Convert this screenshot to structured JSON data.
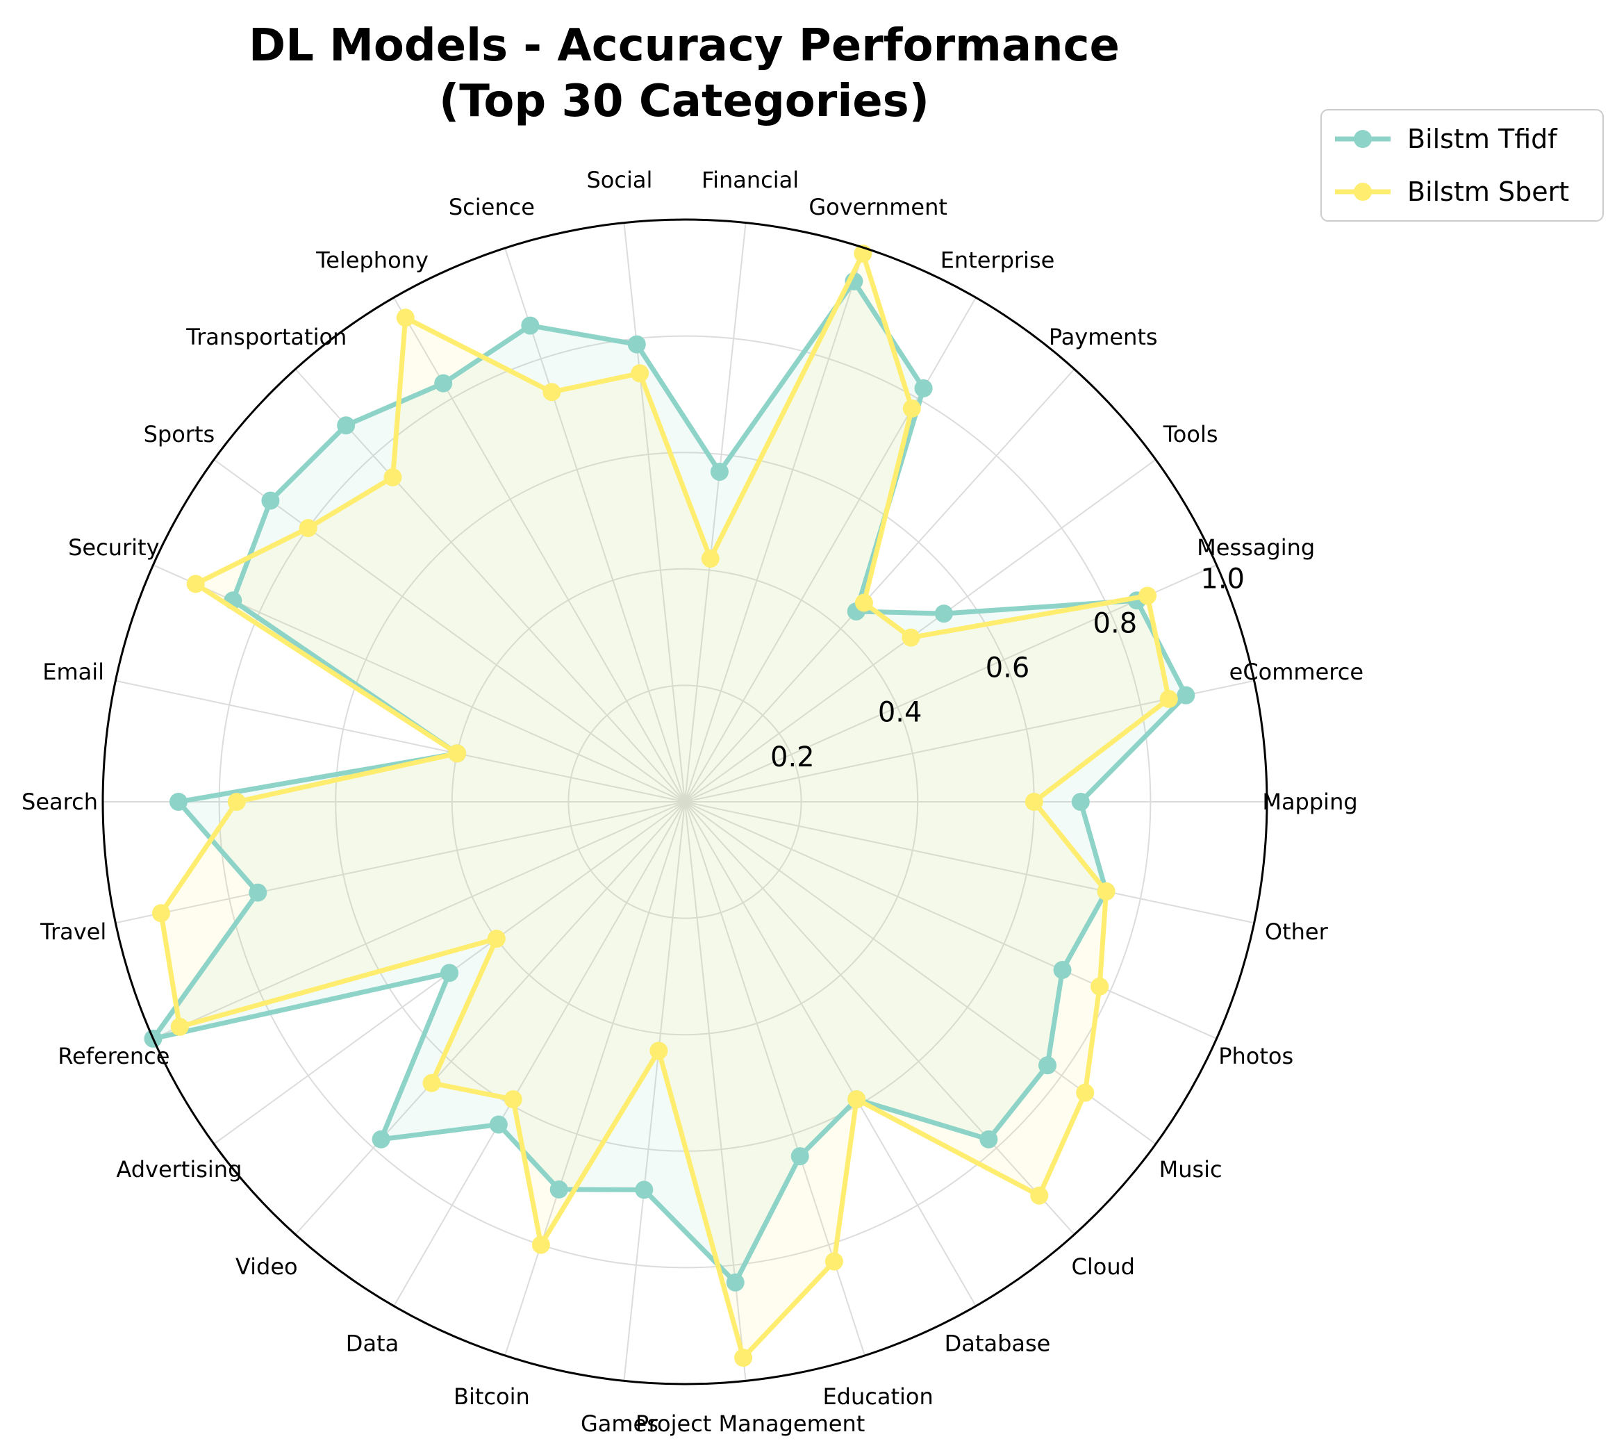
{
  "chart_data": {
    "type": "radar",
    "title_lines": [
      "DL Models - Accuracy Performance",
      "(Top 30 Categories)"
    ],
    "categories": [
      "Mapping",
      "eCommerce",
      "Messaging",
      "Tools",
      "Payments",
      "Enterprise",
      "Government",
      "Financial",
      "Social",
      "Science",
      "Telephony",
      "Transportation",
      "Sports",
      "Security",
      "Email",
      "Search",
      "Travel",
      "Reference",
      "Advertising",
      "Video",
      "Data",
      "Bitcoin",
      "Games",
      "Project Management",
      "Education",
      "Database",
      "Cloud",
      "Music",
      "Photos",
      "Other"
    ],
    "radial_ticks": [
      0.2,
      0.4,
      0.6,
      0.8,
      1.0
    ],
    "radial_tick_labels": [
      "0.2",
      "0.4",
      "0.6",
      "0.8",
      "1.0"
    ],
    "rlim": [
      0,
      1.0
    ],
    "grid": true,
    "legend_position": "top-right",
    "series": [
      {
        "name": "Bilstm Tfidf",
        "color": "#8dd3c7",
        "values": [
          0.68,
          0.88,
          0.85,
          0.55,
          0.44,
          0.82,
          0.94,
          0.57,
          0.79,
          0.86,
          0.83,
          0.87,
          0.88,
          0.85,
          0.4,
          0.87,
          0.75,
          1.0,
          0.5,
          0.78,
          0.64,
          0.7,
          0.67,
          0.83,
          0.64,
          0.59,
          0.78,
          0.77,
          0.71,
          0.74
        ]
      },
      {
        "name": "Bilstm Sbert",
        "color": "#ffed6f",
        "values": [
          0.6,
          0.85,
          0.87,
          0.48,
          0.46,
          0.78,
          0.99,
          0.42,
          0.74,
          0.74,
          0.96,
          0.75,
          0.8,
          0.92,
          0.4,
          0.77,
          0.92,
          0.95,
          0.4,
          0.65,
          0.59,
          0.8,
          0.43,
          0.96,
          0.83,
          0.59,
          0.91,
          0.85,
          0.78,
          0.74
        ]
      }
    ]
  }
}
